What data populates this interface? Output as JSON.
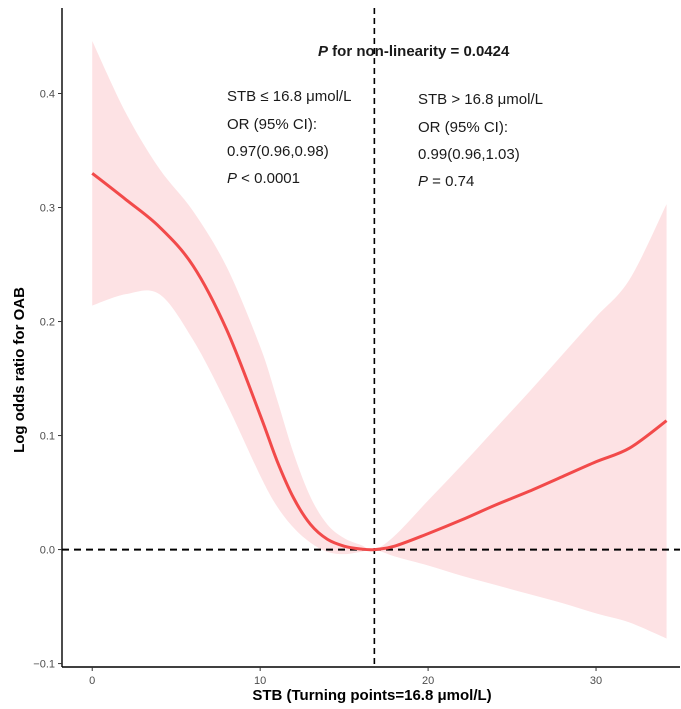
{
  "chart_data": {
    "type": "line",
    "title": "",
    "xlabel": "STB (Turning points=16.8 μmol/L)",
    "ylabel": "Log odds ratio for OAB",
    "xlim": [
      -1.8,
      35
    ],
    "ylim": [
      -0.103,
      0.475
    ],
    "x_ticks": [
      0,
      10,
      20,
      30
    ],
    "y_ticks": [
      -0.1,
      0.0,
      0.1,
      0.2,
      0.3,
      0.4
    ],
    "y_tick_labels": [
      "−0.1",
      "0.0",
      "0.1",
      "0.2",
      "0.3",
      "0.4"
    ],
    "grid": false,
    "turning_point": 16.8,
    "reference_y": 0,
    "series": [
      {
        "x": [
          0,
          2,
          4,
          6,
          8,
          10,
          11,
          12,
          13,
          14,
          15,
          16,
          16.8,
          18,
          20,
          22,
          24,
          26,
          28,
          30,
          32,
          34.2
        ],
        "y": [
          0.33,
          0.307,
          0.283,
          0.249,
          0.193,
          0.118,
          0.078,
          0.045,
          0.022,
          0.009,
          0.003,
          0.0005,
          0.0,
          0.003,
          0.014,
          0.026,
          0.039,
          0.051,
          0.064,
          0.077,
          0.089,
          0.113
        ],
        "lower": [
          0.214,
          0.224,
          0.224,
          0.184,
          0.128,
          0.065,
          0.038,
          0.019,
          0.006,
          -0.002,
          -0.004,
          -0.002,
          0.0,
          -0.006,
          -0.014,
          -0.023,
          -0.031,
          -0.039,
          -0.047,
          -0.056,
          -0.064,
          -0.078
        ],
        "upper": [
          0.446,
          0.383,
          0.334,
          0.297,
          0.248,
          0.178,
          0.132,
          0.084,
          0.046,
          0.022,
          0.01,
          0.004,
          0.0,
          0.012,
          0.043,
          0.074,
          0.106,
          0.138,
          0.171,
          0.204,
          0.237,
          0.303
        ]
      }
    ],
    "colors": {
      "line": "#f24a4a",
      "band": "#fde2e4",
      "ref": "#000000",
      "axis": "#000000",
      "tick": "#333333"
    },
    "annotations": {
      "nonlin_p": "P",
      "nonlin_text": " for non-linearity = 0.0424",
      "left_line1": "STB ≤ 16.8 μmol/L",
      "left_line2": "OR (95% CI):",
      "left_line3": "0.97(0.96,0.98)",
      "left_p": "P",
      "left_p_value": " < 0.0001",
      "right_line1": "STB > 16.8 μmol/L",
      "right_line2": "OR (95% CI):",
      "right_line3": "0.99(0.96,1.03)",
      "right_p": "P",
      "right_p_value": " = 0.74"
    }
  }
}
